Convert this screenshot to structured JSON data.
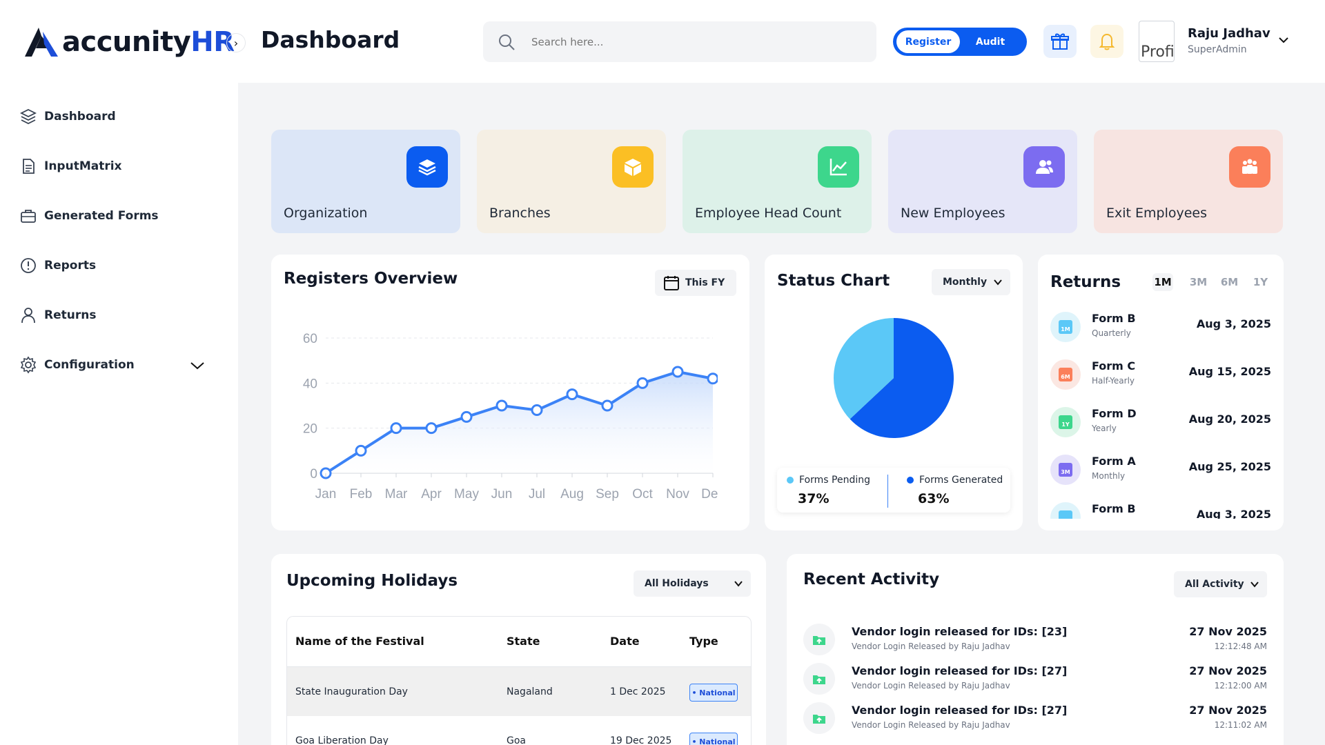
{
  "header": {
    "logo_main": "accunity",
    "logo_accent": "HR",
    "page_title": "Dashboard",
    "search_placeholder": "Search here...",
    "toggle": {
      "register": "Register",
      "audit": "Audit"
    },
    "user": {
      "name": "Raju Jadhav",
      "role": "SuperAdmin",
      "avatar_alt": "Profi"
    }
  },
  "sidebar": {
    "items": [
      {
        "label": "Dashboard",
        "icon": "layers-icon"
      },
      {
        "label": "InputMatrix",
        "icon": "document-icon"
      },
      {
        "label": "Generated Forms",
        "icon": "briefcase-icon"
      },
      {
        "label": "Reports",
        "icon": "alert-circle-icon"
      },
      {
        "label": "Returns",
        "icon": "user-icon"
      },
      {
        "label": "Configuration",
        "icon": "gear-icon"
      }
    ]
  },
  "stats": [
    {
      "label": "Organization",
      "bg": "#dce6f7",
      "icon_bg": "#0b5cf0",
      "icon": "layers-icon"
    },
    {
      "label": "Branches",
      "bg": "#f5efe4",
      "icon_bg": "#fbbf24",
      "icon": "box-icon"
    },
    {
      "label": "Employee Head Count",
      "bg": "#ddf1e9",
      "icon_bg": "#3dd68c",
      "icon": "chart-icon"
    },
    {
      "label": "New Employees",
      "bg": "#e5e6f8",
      "icon_bg": "#7c6cf0",
      "icon": "users-icon"
    },
    {
      "label": "Exit Employees",
      "bg": "#f7e4e1",
      "icon_bg": "#fb7f5a",
      "icon": "team-icon"
    }
  ],
  "registers": {
    "title": "Registers Overview",
    "filter": "This FY"
  },
  "chart_data": [
    {
      "type": "line",
      "title": "Registers Overview",
      "x": [
        "Jan",
        "Feb",
        "Mar",
        "Apr",
        "May",
        "Jun",
        "Jul",
        "Aug",
        "Sep",
        "Oct",
        "Nov",
        "Dec"
      ],
      "series": [
        {
          "values": [
            0,
            10,
            20,
            20,
            25,
            30,
            28,
            35,
            30,
            40,
            45,
            42
          ]
        }
      ],
      "yticks": [
        0,
        20,
        40,
        60
      ],
      "ylim": [
        0,
        60
      ],
      "grid": true,
      "color": "#3b82f6"
    },
    {
      "type": "pie",
      "title": "Status Chart",
      "labels": [
        "Forms Pending",
        "Forms Generated"
      ],
      "values": [
        37,
        63
      ],
      "colors": [
        "#5bc8f7",
        "#0b5cf0"
      ]
    }
  ],
  "status": {
    "title": "Status Chart",
    "filter": "Monthly",
    "pending_label": "Forms Pending",
    "pending_value": "37%",
    "generated_label": "Forms Generated",
    "generated_value": "63%"
  },
  "returns": {
    "title": "Returns",
    "tabs": [
      "1M",
      "3M",
      "6M",
      "1Y"
    ],
    "items": [
      {
        "name": "Form B",
        "freq": "Quarterly",
        "date": "Aug 3, 2025",
        "tag": "1M",
        "bg": "#dff4fb",
        "fg": "#5bc8f7"
      },
      {
        "name": "Form C",
        "freq": "Half-Yearly",
        "date": "Aug 15, 2025",
        "tag": "6M",
        "bg": "#fbe7e2",
        "fg": "#fb7f5a"
      },
      {
        "name": "Form D",
        "freq": "Yearly",
        "date": "Aug 20, 2025",
        "tag": "1Y",
        "bg": "#dcf5e8",
        "fg": "#3dd68c"
      },
      {
        "name": "Form A",
        "freq": "Monthly",
        "date": "Aug 25, 2025",
        "tag": "3M",
        "bg": "#e6e3fa",
        "fg": "#7c6cf0"
      },
      {
        "name": "Form B",
        "freq": "",
        "date": "Aug 3, 2025",
        "tag": "",
        "bg": "#dff4fb",
        "fg": "#5bc8f7"
      }
    ]
  },
  "holidays": {
    "title": "Upcoming Holidays",
    "filter": "All Holidays",
    "columns": [
      "Name of the Festival",
      "State",
      "Date",
      "Type"
    ],
    "rows": [
      {
        "name": "State Inauguration Day",
        "state": "Nagaland",
        "date": "1 Dec 2025",
        "type": "• National"
      },
      {
        "name": "Goa Liberation Day",
        "state": "Goa",
        "date": "19 Dec 2025",
        "type": "• National"
      }
    ]
  },
  "activity": {
    "title": "Recent Activity",
    "filter": "All Activity",
    "items": [
      {
        "title": "Vendor login released for IDs: [23]",
        "sub": "Vendor Login Released by Raju Jadhav",
        "date": "27 Nov 2025",
        "time": "12:12:48 AM"
      },
      {
        "title": "Vendor login released for IDs: [27]",
        "sub": "Vendor Login Released by Raju Jadhav",
        "date": "27 Nov 2025",
        "time": "12:12:00 AM"
      },
      {
        "title": "Vendor login released for IDs: [27]",
        "sub": "Vendor Login Released by Raju Jadhav",
        "date": "27 Nov 2025",
        "time": "12:11:02 AM"
      }
    ]
  }
}
